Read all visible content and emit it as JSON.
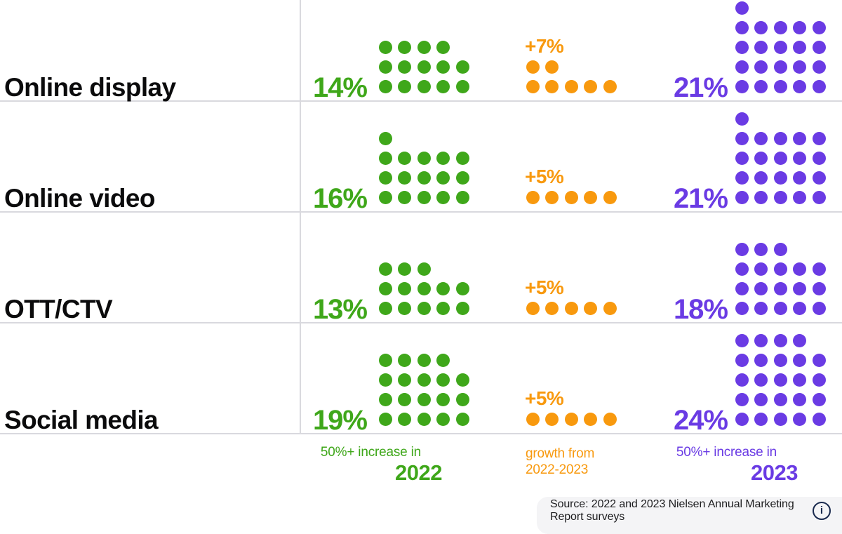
{
  "chart_data": {
    "type": "waffle",
    "note": "dot matrix comparison; 1 dot per percentage point, rows of 5 filled bottom-up, remainder on top row left-aligned",
    "colors": {
      "green": "#3FA71A",
      "orange": "#F8990E",
      "purple": "#6A3BE4"
    },
    "categories": [
      "Online display",
      "Online video",
      "OTT/CTV",
      "Social media"
    ],
    "series": [
      {
        "name": "50%+ increase in 2022",
        "color_key": "green",
        "values": [
          14,
          16,
          13,
          19
        ]
      },
      {
        "name": "growth from 2022-2023",
        "color_key": "orange",
        "values": [
          7,
          5,
          5,
          5
        ]
      },
      {
        "name": "50%+ increase in 2023",
        "color_key": "purple",
        "values": [
          21,
          21,
          18,
          24
        ]
      }
    ],
    "rows": [
      {
        "label": "Online display",
        "pct_2022": "14%",
        "v_2022": 14,
        "growth": "+7%",
        "v_growth": 7,
        "pct_2023": "21%",
        "v_2023": 21
      },
      {
        "label": "Online video",
        "pct_2022": "16%",
        "v_2022": 16,
        "growth": "+5%",
        "v_growth": 5,
        "pct_2023": "21%",
        "v_2023": 21
      },
      {
        "label": "OTT/CTV",
        "pct_2022": "13%",
        "v_2022": 13,
        "growth": "+5%",
        "v_growth": 5,
        "pct_2023": "18%",
        "v_2023": 18
      },
      {
        "label": "Social media",
        "pct_2022": "19%",
        "v_2022": 19,
        "growth": "+5%",
        "v_growth": 5,
        "pct_2023": "24%",
        "v_2023": 24
      }
    ],
    "legend": {
      "green": {
        "line1": "50%+ increase in",
        "year": "2022"
      },
      "orange": {
        "line1": "growth from",
        "line2": "2022-2023"
      },
      "purple": {
        "line1": "50%+ increase in",
        "year": "2023"
      }
    }
  },
  "footer": {
    "source": "Source: 2022 and 2023 Nielsen Annual Marketing Report surveys",
    "info_icon": "i"
  }
}
